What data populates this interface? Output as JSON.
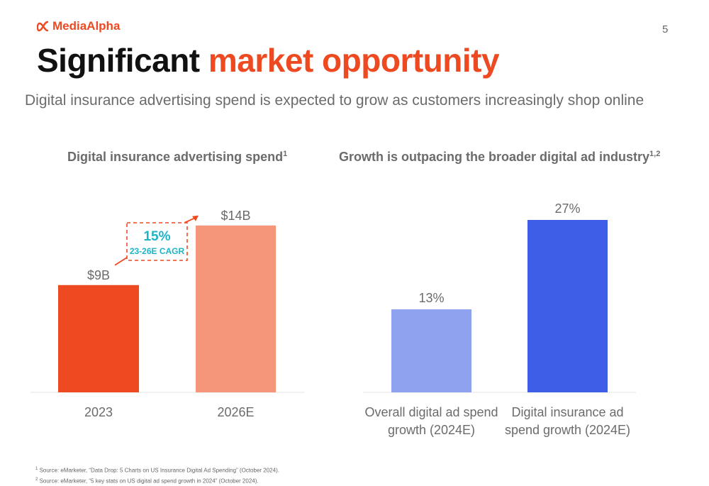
{
  "header": {
    "logo_text": "MediaAlpha",
    "page_number": "5",
    "title_part1": "Significant",
    "title_part2": "market opportunity",
    "subtitle": "Digital insurance advertising spend is expected to grow as customers increasingly shop online"
  },
  "colors": {
    "accent": "#ee4a22",
    "bar_2023": "#ee4a22",
    "bar_2026": "#f5957a",
    "bar_overall": "#8fa2f0",
    "bar_insurance": "#3f5ee8",
    "cagr_text": "#1fb3c6"
  },
  "chart_data": [
    {
      "type": "bar",
      "title": "Digital insurance advertising spend",
      "title_sup": "1",
      "categories": [
        "2023",
        "2026E"
      ],
      "values": [
        9,
        14
      ],
      "value_labels": [
        "$9B",
        "$14B"
      ],
      "ylim": [
        0,
        15
      ],
      "grid": false,
      "annotation": {
        "value": "15%",
        "label": "23-26E CAGR"
      }
    },
    {
      "type": "bar",
      "title": "Growth is outpacing the broader digital ad industry",
      "title_sup": "1,2",
      "categories": [
        "Overall digital ad spend growth (2024E)",
        "Digital insurance ad spend growth (2024E)"
      ],
      "category_lines": [
        [
          "Overall digital ad spend",
          "growth (2024E)"
        ],
        [
          "Digital insurance ad",
          "spend growth (2024E)"
        ]
      ],
      "values": [
        13,
        27
      ],
      "value_labels": [
        "13%",
        "27%"
      ],
      "ylim": [
        0,
        28
      ],
      "grid": false
    }
  ],
  "footnotes": [
    {
      "sup": "1",
      "text": " Source: eMarketer, “Data Drop: 5 Charts on US Insurance Digital Ad Spending” (October 2024)."
    },
    {
      "sup": "2",
      "text": " Source: eMarketer, “5 key stats on US digital ad spend growth in 2024” (October 2024)."
    }
  ]
}
